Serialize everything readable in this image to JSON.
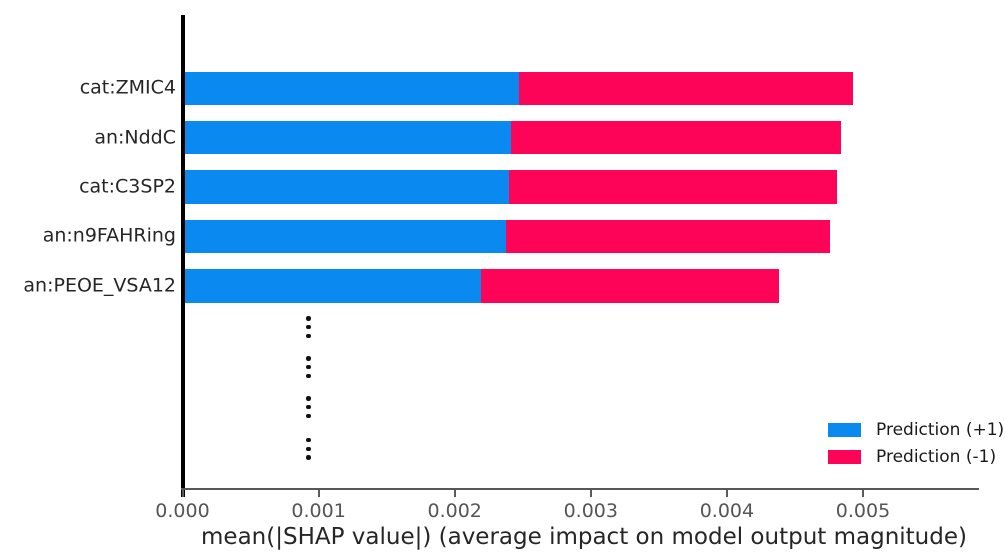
{
  "chart_data": {
    "type": "bar",
    "orientation": "horizontal",
    "stacked": true,
    "title": "",
    "xlabel": "mean(|SHAP value|) (average impact on model output magnitude)",
    "ylabel": "",
    "categories": [
      "cat:ZMIC4",
      "an:NddC",
      "cat:C3SP2",
      "an:n9FAHRing",
      "an:PEOE_VSA12"
    ],
    "series": [
      {
        "name": "Prediction (+1)",
        "color": "#0a8af0",
        "values": [
          0.00247,
          0.00241,
          0.0024,
          0.00238,
          0.00219
        ]
      },
      {
        "name": "Prediction (-1)",
        "color": "#fd0458",
        "values": [
          0.00246,
          0.00243,
          0.00241,
          0.00238,
          0.00219
        ]
      }
    ],
    "totals": [
      0.00493,
      0.00484,
      0.00481,
      0.00476,
      0.00438
    ],
    "xlim": [
      0,
      0.00585
    ],
    "x_ticks": [
      0,
      0.001,
      0.002,
      0.003,
      0.004,
      0.005
    ],
    "x_tick_labels": [
      "0.000",
      "0.001",
      "0.002",
      "0.003",
      "0.004",
      "0.005"
    ],
    "grid": false,
    "legend": {
      "position": "lower right",
      "entries": [
        {
          "label": "Prediction (+1)",
          "color": "#0a8af0"
        },
        {
          "label": "Prediction (-1)",
          "color": "#fd0458"
        }
      ]
    },
    "omitted_rows_indicator": {
      "symbol": "⋮",
      "groups": 4,
      "dots_per_group": 3
    }
  },
  "colors": {
    "background": "#ffffff",
    "y_spine": "#000000",
    "x_axis": "#58585a",
    "tick_label": "#555555",
    "axis_label": "#262626",
    "feature_label": "#262626",
    "ellipsis_dot": "#111111"
  }
}
